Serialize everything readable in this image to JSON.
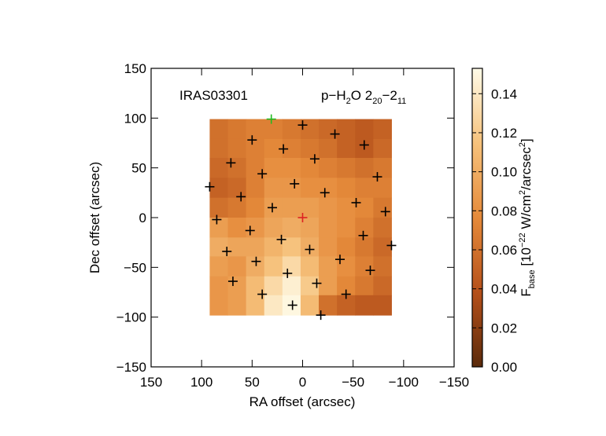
{
  "chart_data": {
    "type": "heatmap",
    "xlabel": "RA offset (arcsec)",
    "ylabel": "Dec offset (arcsec)",
    "xlim": [
      150,
      -150
    ],
    "ylim": [
      -150,
      150
    ],
    "xticks": [
      150,
      100,
      50,
      0,
      {
        "value": -50,
        "label": "−50"
      },
      {
        "value": -100,
        "label": "−100"
      },
      {
        "value": -150,
        "label": "−150"
      }
    ],
    "yticks": [
      {
        "value": -150,
        "label": "−150"
      },
      {
        "value": -100,
        "label": "−100"
      },
      {
        "value": -50,
        "label": "−50"
      },
      0,
      50,
      100,
      150
    ],
    "annotations": [
      {
        "parts": [
          {
            "text": "IRAS03301"
          }
        ]
      },
      {
        "parts": [
          {
            "text": "p−H"
          },
          {
            "text": "2",
            "shift": "sub"
          },
          {
            "text": "O 2"
          },
          {
            "text": "20",
            "shift": "sub"
          },
          {
            "text": "−2"
          },
          {
            "text": "11",
            "shift": "sub"
          }
        ]
      }
    ],
    "x_edges": [
      92,
      74,
      56,
      38,
      20,
      2,
      -16,
      -34,
      -52,
      -70,
      -88
    ],
    "y_edges": [
      99,
      79,
      60,
      40,
      20,
      0,
      -20,
      -39,
      -59,
      -78,
      -98
    ],
    "z": [
      [
        0.06,
        0.065,
        0.07,
        0.07,
        0.065,
        0.06,
        0.055,
        0.05,
        0.045,
        0.05
      ],
      [
        0.06,
        0.065,
        0.07,
        0.075,
        0.07,
        0.065,
        0.06,
        0.05,
        0.045,
        0.055
      ],
      [
        0.055,
        0.06,
        0.07,
        0.08,
        0.08,
        0.075,
        0.07,
        0.065,
        0.06,
        0.065
      ],
      [
        0.05,
        0.055,
        0.07,
        0.085,
        0.085,
        0.08,
        0.08,
        0.075,
        0.07,
        0.07
      ],
      [
        0.06,
        0.065,
        0.075,
        0.09,
        0.09,
        0.09,
        0.085,
        0.08,
        0.075,
        0.065
      ],
      [
        0.09,
        0.08,
        0.085,
        0.095,
        0.1,
        0.095,
        0.085,
        0.08,
        0.07,
        0.06
      ],
      [
        0.1,
        0.095,
        0.095,
        0.105,
        0.115,
        0.1,
        0.085,
        0.075,
        0.065,
        0.055
      ],
      [
        0.09,
        0.085,
        0.1,
        0.115,
        0.13,
        0.11,
        0.09,
        0.08,
        0.07,
        0.06
      ],
      [
        0.085,
        0.09,
        0.11,
        0.13,
        0.145,
        0.12,
        0.09,
        0.075,
        0.065,
        0.055
      ],
      [
        0.085,
        0.09,
        0.11,
        0.14,
        0.15,
        0.11,
        0.06,
        0.05,
        0.045,
        0.045
      ]
    ],
    "colormap": [
      "#5a2a0b",
      "#b5501a",
      "#e58a3a",
      "#f6c27c",
      "#fffbe8"
    ],
    "clim": [
      0,
      0.153
    ],
    "cticks": [
      {
        "value": 0,
        "label": "0.00"
      },
      {
        "value": 0.02,
        "label": "0.02"
      },
      {
        "value": 0.04,
        "label": "0.04"
      },
      {
        "value": 0.06,
        "label": "0.06"
      },
      {
        "value": 0.08,
        "label": "0.08"
      },
      {
        "value": 0.1,
        "label": "0.10"
      },
      {
        "value": 0.12,
        "label": "0.12"
      },
      {
        "value": 0.14,
        "label": "0.14"
      }
    ],
    "colorbar_label": {
      "parts": [
        {
          "text": "F"
        },
        {
          "text": "base",
          "shift": "sub"
        },
        {
          "text": " [10"
        },
        {
          "text": "−22",
          "shift": "sup"
        },
        {
          "text": " W/cm"
        },
        {
          "text": "2",
          "shift": "sup"
        },
        {
          "text": "/arcsec"
        },
        {
          "text": "2",
          "shift": "sup"
        },
        {
          "text": "]"
        }
      ]
    },
    "markers": {
      "x": [
        31,
        0,
        -32,
        -61,
        50,
        19,
        71,
        -12,
        40,
        -74,
        92,
        8,
        61,
        -22,
        -53,
        30,
        0,
        -82,
        85,
        52,
        -60,
        21,
        -88,
        75,
        -7,
        -37,
        46,
        -67,
        15,
        69,
        -14,
        -43,
        40,
        10,
        -18
      ],
      "y": [
        99,
        93,
        84,
        73,
        78,
        69,
        55,
        59,
        44,
        41,
        31,
        34,
        21,
        25,
        15,
        10,
        0,
        6,
        -2,
        -13,
        -18,
        -22,
        -28,
        -34,
        -32,
        -42,
        -44,
        -53,
        -56,
        -64,
        -66,
        -77,
        -77,
        -88,
        -98
      ],
      "colors": [
        "#22bb22",
        "#000000",
        "#000000",
        "#000000",
        "#000000",
        "#000000",
        "#000000",
        "#000000",
        "#000000",
        "#000000",
        "#000000",
        "#000000",
        "#000000",
        "#000000",
        "#000000",
        "#000000",
        "#dd2222",
        "#000000",
        "#000000",
        "#000000",
        "#000000",
        "#000000",
        "#000000",
        "#000000",
        "#000000",
        "#000000",
        "#000000",
        "#000000",
        "#000000",
        "#000000",
        "#000000",
        "#000000",
        "#000000",
        "#000000",
        "#000000"
      ]
    }
  }
}
